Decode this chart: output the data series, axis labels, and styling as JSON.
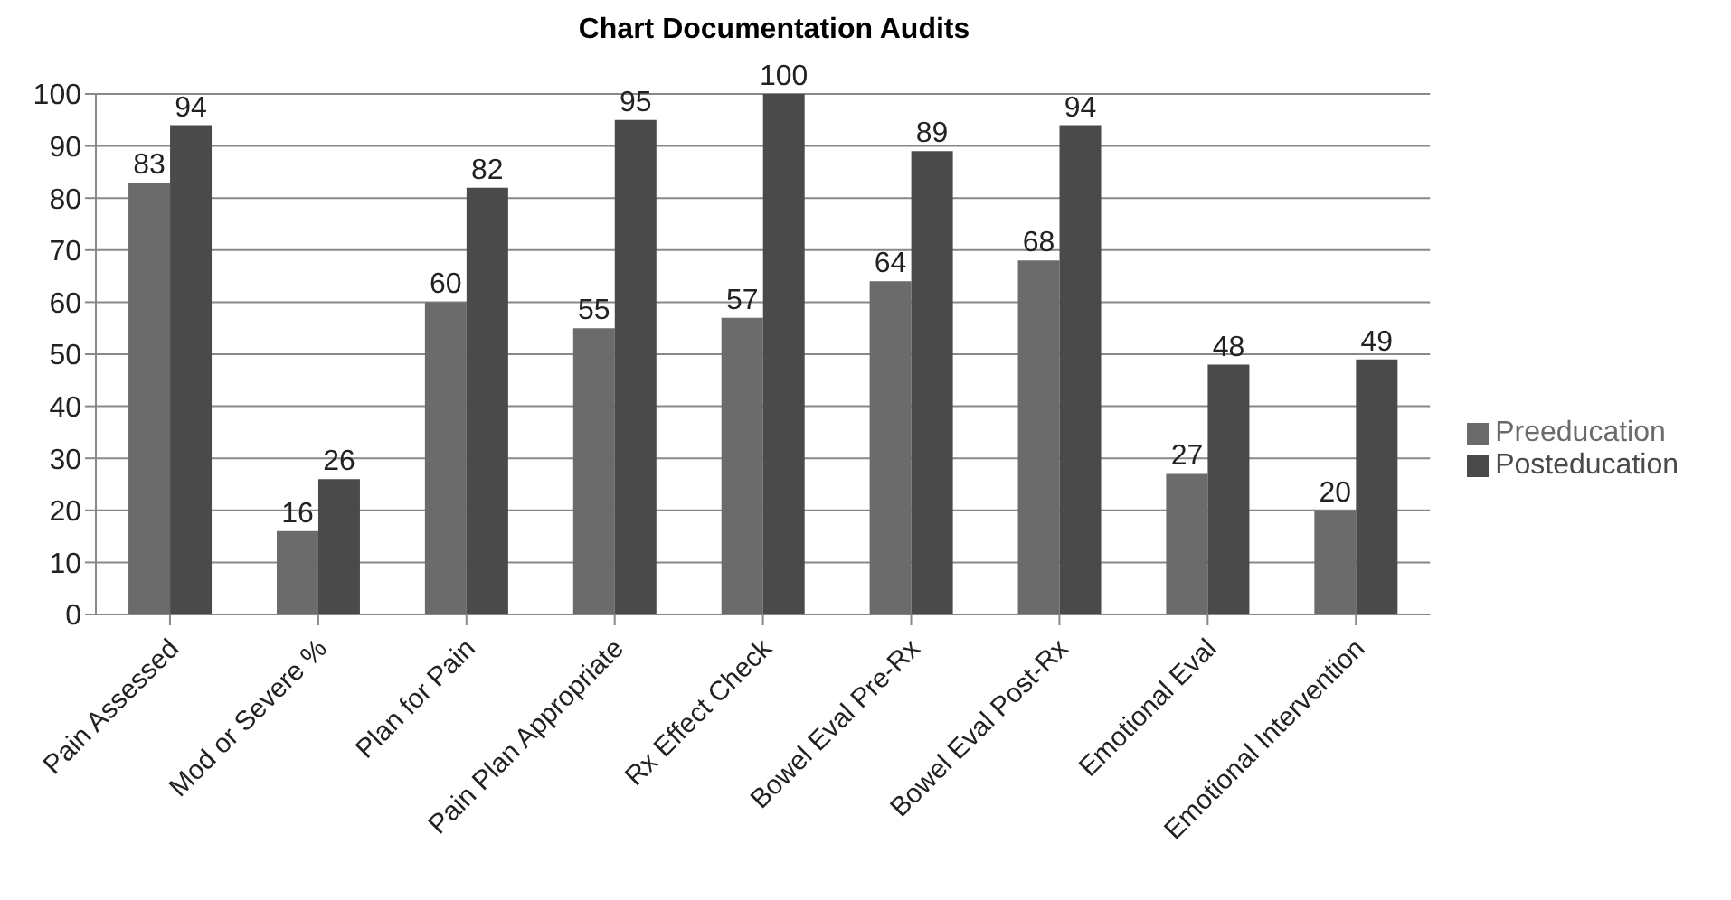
{
  "chart_data": {
    "type": "bar",
    "title": "Chart Documentation Audits",
    "categories": [
      "Pain Assessed",
      "Mod or Severe %",
      "Plan for Pain",
      "Pain Plan Appropriate",
      "Rx Effect Check",
      "Bowel Eval Pre-Rx",
      "Bowel Eval Post-Rx",
      "Emotional Eval",
      "Emotional Intervention"
    ],
    "series": [
      {
        "name": "Preeducation",
        "color": "#6b6b6b",
        "values": [
          83,
          16,
          60,
          55,
          57,
          64,
          68,
          27,
          20
        ]
      },
      {
        "name": "Posteducation",
        "color": "#4a4a4a",
        "values": [
          94,
          26,
          82,
          95,
          100,
          89,
          94,
          48,
          49
        ]
      }
    ],
    "ylim": [
      0,
      100
    ],
    "yticks": [
      0,
      10,
      20,
      30,
      40,
      50,
      60,
      70,
      80,
      90,
      100
    ],
    "grid": "y",
    "legend": "right",
    "data_labels": true
  }
}
